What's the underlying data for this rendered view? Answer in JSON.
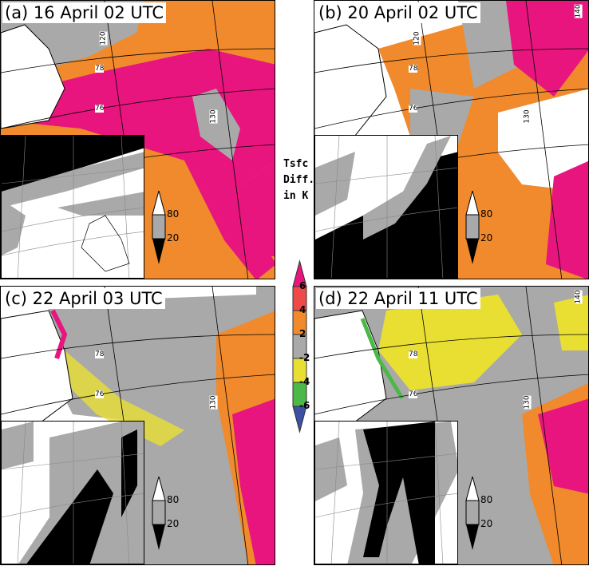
{
  "panels": [
    {
      "title": "(a) 16 April 02 UTC"
    },
    {
      "title": "(b) 20 April 02 UTC"
    },
    {
      "title": "(c) 22 April 03 UTC"
    },
    {
      "title": "(d) 22 April 11 UTC"
    }
  ],
  "grid_labels": {
    "lat": [
      "78",
      "76"
    ],
    "lon": [
      "120",
      "130",
      "140"
    ]
  },
  "inset_legend": {
    "high": "80",
    "low": "20"
  },
  "colorbar": {
    "title_lines": [
      "Tsfc",
      "Diff.",
      "in  K"
    ],
    "ticks": [
      "6",
      "4",
      "2",
      "-2",
      "-4",
      "-6"
    ],
    "colors": [
      "#e8157e",
      "#ef4a4a",
      "#f08a2c",
      "#a9a9a9",
      "#e9df33",
      "#4cb848",
      "#3c50a4"
    ]
  }
}
